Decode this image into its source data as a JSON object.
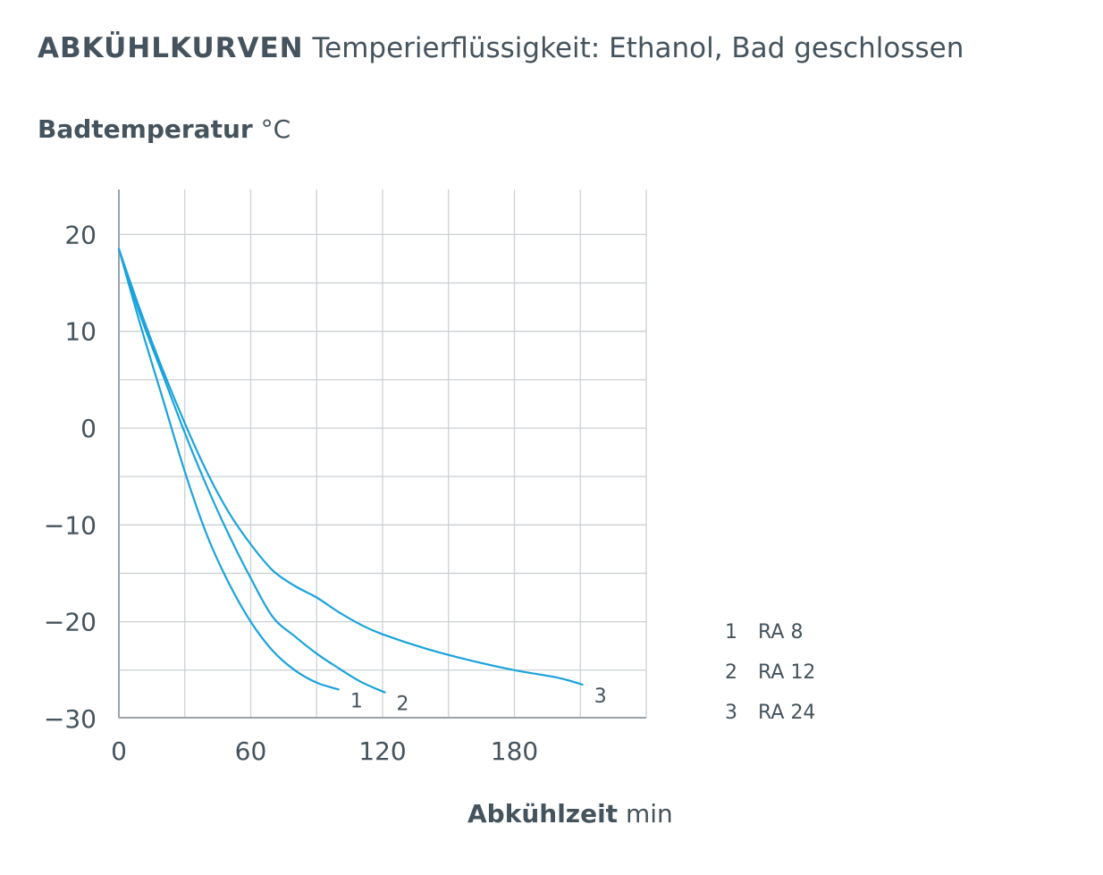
{
  "header": {
    "title_bold": "ABKÜHLKURVEN",
    "title_rest": "Temperierflüssigkeit: Ethanol, Bad geschlossen"
  },
  "axes": {
    "y_label_bold": "Badtemperatur",
    "y_label_unit": "°C",
    "x_label_bold": "Abkühlzeit",
    "x_label_unit": "min"
  },
  "colors": {
    "curve": "#1aa3dc",
    "grid": "#ccd1d5",
    "axis": "#9aa3aa",
    "text": "#44535d"
  },
  "chart_data": {
    "type": "line",
    "xlim": [
      0,
      240
    ],
    "ylim": [
      -30,
      25
    ],
    "x_ticks": [
      0,
      60,
      120,
      180
    ],
    "x_tick_labels": [
      "0",
      "60",
      "120",
      "180"
    ],
    "y_ticks": [
      20,
      10,
      0,
      -10,
      -20,
      -30
    ],
    "y_tick_labels": [
      "20",
      "10",
      "0",
      "−10",
      "−20",
      "−30"
    ],
    "grid": true,
    "series": [
      {
        "name": "RA 8",
        "label": "1",
        "points": [
          [
            0,
            18.5
          ],
          [
            10,
            10.5
          ],
          [
            20,
            3
          ],
          [
            30,
            -4.5
          ],
          [
            40,
            -11
          ],
          [
            50,
            -16
          ],
          [
            60,
            -20
          ],
          [
            70,
            -23
          ],
          [
            80,
            -25
          ],
          [
            90,
            -26.3
          ],
          [
            100,
            -27
          ]
        ]
      },
      {
        "name": "RA 12",
        "label": "2",
        "points": [
          [
            0,
            18.5
          ],
          [
            10,
            11.5
          ],
          [
            20,
            5.5
          ],
          [
            30,
            -0.5
          ],
          [
            40,
            -6
          ],
          [
            50,
            -11
          ],
          [
            60,
            -15.5
          ],
          [
            70,
            -19.5
          ],
          [
            80,
            -21.5
          ],
          [
            90,
            -23.3
          ],
          [
            100,
            -24.8
          ],
          [
            110,
            -26.2
          ],
          [
            121,
            -27.3
          ]
        ]
      },
      {
        "name": "RA 24",
        "label": "3",
        "points": [
          [
            0,
            18.5
          ],
          [
            10,
            12
          ],
          [
            20,
            6
          ],
          [
            30,
            0.5
          ],
          [
            40,
            -4.5
          ],
          [
            50,
            -8.7
          ],
          [
            60,
            -12
          ],
          [
            70,
            -14.7
          ],
          [
            80,
            -16.3
          ],
          [
            90,
            -17.5
          ],
          [
            100,
            -19
          ],
          [
            110,
            -20.3
          ],
          [
            120,
            -21.3
          ],
          [
            140,
            -22.8
          ],
          [
            160,
            -24
          ],
          [
            180,
            -25
          ],
          [
            200,
            -25.8
          ],
          [
            211,
            -26.5
          ]
        ]
      }
    ],
    "legend": [
      {
        "num": "1",
        "text": "RA 8"
      },
      {
        "num": "2",
        "text": "RA 12"
      },
      {
        "num": "3",
        "text": "RA 24"
      }
    ],
    "legend_position": "right"
  }
}
